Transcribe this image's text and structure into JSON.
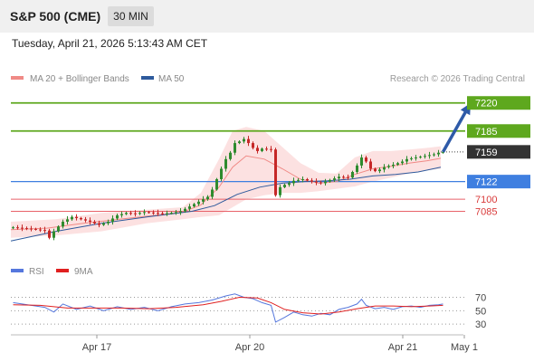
{
  "header": {
    "title": "S&P 500 (CME)",
    "timeframe": "30 MIN",
    "timestamp": "Tuesday, April 21, 2026 5:13:43 AM CET"
  },
  "legend": {
    "items": [
      {
        "label": "MA 20 + Bollinger Bands",
        "color": "#f08a86"
      },
      {
        "label": "MA 50",
        "color": "#2e5a9c"
      }
    ],
    "credit": "Research © 2026 Trading Central"
  },
  "colors": {
    "resistance": "#5ea81e",
    "pivot": "#3f7fe0",
    "support": "#e8626a",
    "last_price": "#333333",
    "bollinger_fill": "#fcdcdc",
    "arrow": "#2e5aa8",
    "rsi": "#5577dd",
    "rsi_ma": "#e02020"
  },
  "chart_data": [
    {
      "type": "candlestick",
      "title": "S&P 500 (CME)",
      "timeframe": "30 MIN",
      "x_tick_labels": [
        "Apr 17",
        "Apr 20",
        "Apr 21",
        "May 1"
      ],
      "ylim": [
        7028,
        7240
      ],
      "levels": [
        {
          "label": "7220",
          "value": 7220,
          "kind": "resistance"
        },
        {
          "label": "7185",
          "value": 7185,
          "kind": "resistance"
        },
        {
          "label": "7159",
          "value": 7159,
          "kind": "last"
        },
        {
          "label": "7122",
          "value": 7122,
          "kind": "pivot"
        },
        {
          "label": "7100",
          "value": 7100,
          "kind": "support"
        },
        {
          "label": "7085",
          "value": 7085,
          "kind": "support"
        }
      ],
      "close_path": [
        [
          0,
          7065
        ],
        [
          4,
          7063
        ],
        [
          7,
          7061
        ],
        [
          8,
          7052
        ],
        [
          9,
          7060
        ],
        [
          11,
          7072
        ],
        [
          13,
          7078
        ],
        [
          15,
          7075
        ],
        [
          17,
          7072
        ],
        [
          19,
          7068
        ],
        [
          21,
          7072
        ],
        [
          23,
          7080
        ],
        [
          25,
          7083
        ],
        [
          27,
          7082
        ],
        [
          29,
          7084
        ],
        [
          31,
          7083
        ],
        [
          33,
          7082
        ],
        [
          35,
          7083
        ],
        [
          37,
          7085
        ],
        [
          39,
          7091
        ],
        [
          41,
          7097
        ],
        [
          43,
          7103
        ],
        [
          44,
          7112
        ],
        [
          45,
          7125
        ],
        [
          46,
          7138
        ],
        [
          47,
          7150
        ],
        [
          48,
          7158
        ],
        [
          49,
          7170
        ],
        [
          50,
          7172
        ],
        [
          51,
          7175
        ],
        [
          52,
          7170
        ],
        [
          53,
          7164
        ],
        [
          54,
          7160
        ],
        [
          55,
          7163
        ],
        [
          57,
          7162
        ],
        [
          58,
          7105
        ],
        [
          59,
          7115
        ],
        [
          60,
          7118
        ],
        [
          61,
          7120
        ],
        [
          62,
          7123
        ],
        [
          64,
          7125
        ],
        [
          66,
          7122
        ],
        [
          68,
          7120
        ],
        [
          70,
          7124
        ],
        [
          72,
          7128
        ],
        [
          74,
          7127
        ],
        [
          75,
          7134
        ],
        [
          76,
          7142
        ],
        [
          77,
          7152
        ],
        [
          78,
          7147
        ],
        [
          79,
          7138
        ],
        [
          80,
          7135
        ],
        [
          81,
          7137
        ],
        [
          82,
          7140
        ],
        [
          84,
          7143
        ],
        [
          86,
          7147
        ],
        [
          87,
          7150
        ],
        [
          89,
          7152
        ],
        [
          91,
          7154
        ],
        [
          93,
          7156
        ],
        [
          94,
          7158
        ],
        [
          95,
          7159
        ]
      ],
      "ma20_path": [
        [
          0,
          7062
        ],
        [
          8,
          7064
        ],
        [
          16,
          7070
        ],
        [
          24,
          7075
        ],
        [
          32,
          7080
        ],
        [
          38,
          7084
        ],
        [
          42,
          7093
        ],
        [
          46,
          7115
        ],
        [
          49,
          7140
        ],
        [
          52,
          7154
        ],
        [
          56,
          7150
        ],
        [
          60,
          7138
        ],
        [
          64,
          7125
        ],
        [
          68,
          7120
        ],
        [
          72,
          7122
        ],
        [
          76,
          7131
        ],
        [
          80,
          7138
        ],
        [
          84,
          7141
        ],
        [
          88,
          7145
        ],
        [
          92,
          7148
        ],
        [
          95,
          7151
        ]
      ],
      "ma50_path": [
        [
          0,
          7048
        ],
        [
          10,
          7060
        ],
        [
          20,
          7070
        ],
        [
          30,
          7078
        ],
        [
          40,
          7085
        ],
        [
          45,
          7092
        ],
        [
          50,
          7106
        ],
        [
          55,
          7115
        ],
        [
          60,
          7120
        ],
        [
          65,
          7122
        ],
        [
          70,
          7123
        ],
        [
          75,
          7125
        ],
        [
          80,
          7129
        ],
        [
          85,
          7131
        ],
        [
          90,
          7134
        ],
        [
          95,
          7140
        ]
      ],
      "bollinger_upper": [
        [
          0,
          7072
        ],
        [
          10,
          7075
        ],
        [
          20,
          7083
        ],
        [
          30,
          7087
        ],
        [
          38,
          7090
        ],
        [
          42,
          7108
        ],
        [
          46,
          7150
        ],
        [
          49,
          7185
        ],
        [
          52,
          7190
        ],
        [
          56,
          7185
        ],
        [
          60,
          7165
        ],
        [
          64,
          7145
        ],
        [
          68,
          7133
        ],
        [
          72,
          7132
        ],
        [
          76,
          7152
        ],
        [
          80,
          7160
        ],
        [
          84,
          7160
        ],
        [
          88,
          7162
        ],
        [
          92,
          7164
        ],
        [
          95,
          7166
        ]
      ],
      "bollinger_lower": [
        [
          0,
          7052
        ],
        [
          10,
          7055
        ],
        [
          20,
          7060
        ],
        [
          30,
          7070
        ],
        [
          38,
          7075
        ],
        [
          42,
          7078
        ],
        [
          46,
          7080
        ],
        [
          49,
          7090
        ],
        [
          52,
          7100
        ],
        [
          56,
          7105
        ],
        [
          60,
          7108
        ],
        [
          64,
          7108
        ],
        [
          68,
          7110
        ],
        [
          72,
          7113
        ],
        [
          76,
          7116
        ],
        [
          80,
          7122
        ],
        [
          84,
          7127
        ],
        [
          88,
          7132
        ],
        [
          92,
          7136
        ],
        [
          95,
          7138
        ]
      ],
      "forecast_arrow": {
        "from": [
          95,
          7159
        ],
        "to": [
          101,
          7214
        ]
      }
    },
    {
      "type": "line",
      "series": [
        {
          "name": "RSI",
          "path": [
            [
              0,
              62
            ],
            [
              4,
              58
            ],
            [
              7,
              55
            ],
            [
              9,
              48
            ],
            [
              11,
              60
            ],
            [
              14,
              52
            ],
            [
              17,
              57
            ],
            [
              20,
              50
            ],
            [
              23,
              56
            ],
            [
              26,
              52
            ],
            [
              29,
              55
            ],
            [
              32,
              50
            ],
            [
              35,
              56
            ],
            [
              38,
              60
            ],
            [
              41,
              62
            ],
            [
              44,
              66
            ],
            [
              47,
              72
            ],
            [
              49,
              75
            ],
            [
              51,
              70
            ],
            [
              53,
              68
            ],
            [
              55,
              62
            ],
            [
              57,
              58
            ],
            [
              58,
              33
            ],
            [
              60,
              40
            ],
            [
              62,
              48
            ],
            [
              64,
              44
            ],
            [
              66,
              42
            ],
            [
              68,
              46
            ],
            [
              70,
              44
            ],
            [
              72,
              52
            ],
            [
              74,
              55
            ],
            [
              76,
              60
            ],
            [
              77,
              67
            ],
            [
              78,
              58
            ],
            [
              80,
              53
            ],
            [
              82,
              55
            ],
            [
              84,
              52
            ],
            [
              86,
              56
            ],
            [
              88,
              57
            ],
            [
              90,
              55
            ],
            [
              92,
              58
            ],
            [
              94,
              59
            ],
            [
              95,
              60
            ]
          ]
        },
        {
          "name": "9MA",
          "path": [
            [
              0,
              59
            ],
            [
              6,
              58
            ],
            [
              12,
              54
            ],
            [
              18,
              54
            ],
            [
              24,
              54
            ],
            [
              30,
              53
            ],
            [
              36,
              55
            ],
            [
              42,
              59
            ],
            [
              46,
              64
            ],
            [
              50,
              70
            ],
            [
              54,
              69
            ],
            [
              57,
              62
            ],
            [
              60,
              52
            ],
            [
              64,
              47
            ],
            [
              68,
              45
            ],
            [
              72,
              48
            ],
            [
              76,
              53
            ],
            [
              80,
              57
            ],
            [
              84,
              57
            ],
            [
              88,
              56
            ],
            [
              92,
              57
            ],
            [
              95,
              58
            ]
          ]
        }
      ],
      "ylim": [
        14,
        95
      ],
      "levels": [
        {
          "label": "70",
          "value": 70
        },
        {
          "label": "50",
          "value": 50
        },
        {
          "label": "30",
          "value": 30
        }
      ]
    }
  ]
}
